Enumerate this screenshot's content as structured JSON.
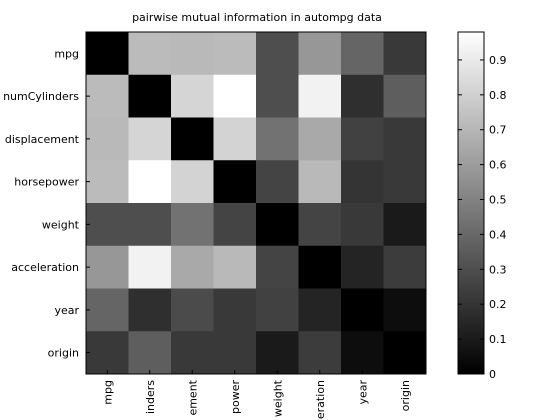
{
  "chart_data": {
    "type": "heatmap",
    "title": "pairwise mutual information in autompg data",
    "row_labels": [
      "mpg",
      "numCylinders",
      "displacement",
      "horsepower",
      "weight",
      "acceleration",
      "year",
      "origin"
    ],
    "col_labels": [
      "mpg",
      "inders",
      "ement",
      "power",
      "weight",
      "eration",
      "year",
      "origin"
    ],
    "values": [
      [
        0.0,
        0.72,
        0.71,
        0.72,
        0.3,
        0.58,
        0.39,
        0.22
      ],
      [
        0.72,
        0.0,
        0.82,
        0.98,
        0.3,
        0.93,
        0.18,
        0.36
      ],
      [
        0.71,
        0.82,
        0.0,
        0.81,
        0.44,
        0.65,
        0.25,
        0.22
      ],
      [
        0.72,
        0.98,
        0.81,
        0.0,
        0.26,
        0.71,
        0.2,
        0.22
      ],
      [
        0.3,
        0.3,
        0.44,
        0.26,
        0.0,
        0.26,
        0.22,
        0.1
      ],
      [
        0.58,
        0.93,
        0.65,
        0.71,
        0.26,
        0.0,
        0.14,
        0.23
      ],
      [
        0.39,
        0.18,
        0.29,
        0.22,
        0.25,
        0.14,
        0.0,
        0.05
      ],
      [
        0.22,
        0.36,
        0.22,
        0.22,
        0.1,
        0.23,
        0.05,
        0.0
      ]
    ],
    "colorbar": {
      "colormap": "gray",
      "range": [
        0,
        0.98
      ],
      "ticks": [
        0,
        0.1,
        0.2,
        0.3,
        0.4,
        0.5,
        0.6,
        0.7,
        0.8,
        0.9
      ],
      "tick_labels": [
        "0",
        "0.1",
        "0.2",
        "0.3",
        "0.4",
        "0.5",
        "0.6",
        "0.7",
        "0.8",
        "0.9"
      ]
    },
    "xlabel": "",
    "ylabel": ""
  }
}
